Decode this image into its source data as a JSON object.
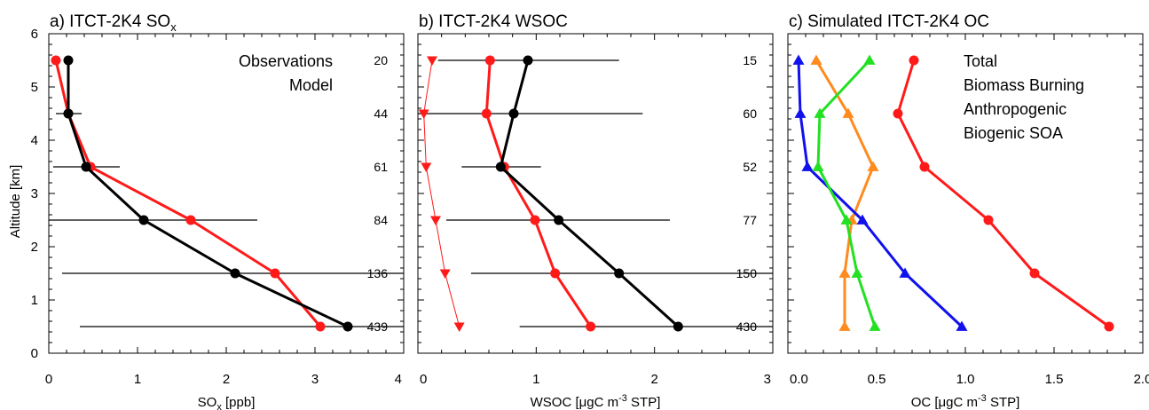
{
  "figure": {
    "ylabel": "Altitude [km]"
  },
  "chart_data": [
    {
      "type": "line",
      "title": "a) ITCT-2K4 SO",
      "title_sub": "x",
      "xlabel": "SO",
      "xlabel_sub": "x",
      "xlabel_rest": " [ppb]",
      "ylabel": "Altitude [km]",
      "xlim": [
        0,
        4
      ],
      "ylim": [
        0,
        6
      ],
      "xticks": [
        "0",
        "1",
        "2",
        "3",
        "4"
      ],
      "yticks": [
        "0",
        "1",
        "2",
        "3",
        "4",
        "5",
        "6"
      ],
      "legend": [
        {
          "label": "Observations",
          "color": "#000000"
        },
        {
          "label": "Model",
          "color": "#ff1a1a"
        }
      ],
      "counts": [
        {
          "y": 5.5,
          "label": "20"
        },
        {
          "y": 4.5,
          "label": "44"
        },
        {
          "y": 3.5,
          "label": "61"
        },
        {
          "y": 2.5,
          "label": "84"
        },
        {
          "y": 1.5,
          "label": "136"
        },
        {
          "y": 0.5,
          "label": "439"
        }
      ],
      "errorbars": [
        {
          "y": 5.5,
          "low": 0.2,
          "high": 0.22
        },
        {
          "y": 4.5,
          "low": 0.08,
          "high": 0.37
        },
        {
          "y": 3.5,
          "low": 0.05,
          "high": 0.8
        },
        {
          "y": 2.5,
          "low": 0.0,
          "high": 2.35
        },
        {
          "y": 1.5,
          "low": 0.15,
          "high": 4.0
        },
        {
          "y": 0.5,
          "low": 0.35,
          "high": 4.0
        }
      ],
      "series": [
        {
          "name": "Model",
          "color": "#ff1a1a",
          "marker": "circle",
          "width": 3,
          "x": [
            0.08,
            0.22,
            0.47,
            1.6,
            2.55,
            3.06
          ],
          "y": [
            5.5,
            4.5,
            3.5,
            2.5,
            1.5,
            0.5
          ]
        },
        {
          "name": "Observations",
          "color": "#000000",
          "marker": "circle",
          "width": 3,
          "x": [
            0.22,
            0.22,
            0.42,
            1.07,
            2.1,
            3.37
          ],
          "y": [
            5.5,
            4.5,
            3.5,
            2.5,
            1.5,
            0.5
          ]
        }
      ]
    },
    {
      "type": "line",
      "title": "b) ITCT-2K4 WSOC",
      "xlabel": "WSOC [μgC m",
      "xlabel_sup": "-3",
      "xlabel_rest": " STP]",
      "xlim": [
        0,
        3
      ],
      "ylim": [
        0,
        6
      ],
      "xticks": [
        "0",
        "1",
        "2",
        "3"
      ],
      "yticks": [],
      "counts": [
        {
          "y": 5.5,
          "label": "15"
        },
        {
          "y": 4.5,
          "label": "60"
        },
        {
          "y": 3.5,
          "label": "52"
        },
        {
          "y": 2.5,
          "label": "77"
        },
        {
          "y": 1.5,
          "label": "150"
        },
        {
          "y": 0.5,
          "label": "430"
        }
      ],
      "errorbars": [
        {
          "y": 5.5,
          "low": 0.17,
          "high": 1.7
        },
        {
          "y": 4.5,
          "low": 0.0,
          "high": 1.9
        },
        {
          "y": 3.5,
          "low": 0.37,
          "high": 1.04
        },
        {
          "y": 2.5,
          "low": 0.24,
          "high": 2.13
        },
        {
          "y": 1.5,
          "low": 0.45,
          "high": 3.0
        },
        {
          "y": 0.5,
          "low": 0.86,
          "high": 3.0
        }
      ],
      "series": [
        {
          "name": "",
          "color": "#ff1a1a",
          "marker": "triangle-down",
          "width": 1,
          "x": [
            0.12,
            0.05,
            0.07,
            0.15,
            0.23,
            0.35
          ],
          "y": [
            5.5,
            4.5,
            3.5,
            2.5,
            1.5,
            0.5
          ]
        },
        {
          "name": "Model",
          "color": "#ff1a1a",
          "marker": "circle",
          "width": 3,
          "x": [
            0.61,
            0.58,
            0.73,
            0.99,
            1.16,
            1.46
          ],
          "y": [
            5.5,
            4.5,
            3.5,
            2.5,
            1.5,
            0.5
          ]
        },
        {
          "name": "Observations",
          "color": "#000000",
          "marker": "circle",
          "width": 3,
          "x": [
            0.93,
            0.81,
            0.7,
            1.19,
            1.7,
            2.2
          ],
          "y": [
            5.5,
            4.5,
            3.5,
            2.5,
            1.5,
            0.5
          ]
        }
      ]
    },
    {
      "type": "line",
      "title": "c) Simulated ITCT-2K4 OC",
      "xlabel": "OC [μgC m",
      "xlabel_sup": "-3",
      "xlabel_rest": " STP]",
      "xlim": [
        0,
        2
      ],
      "ylim": [
        0,
        6
      ],
      "xticks": [
        "0.0",
        "0.5",
        "1.0",
        "1.5",
        "2.0"
      ],
      "yticks": [],
      "legend": [
        {
          "label": "Total",
          "color": "#ff1a1a"
        },
        {
          "label": "Biomass Burning",
          "color": "#ff8a1e"
        },
        {
          "label": "Anthropogenic",
          "color": "#1111ee"
        },
        {
          "label": "Biogenic SOA",
          "color": "#22e022"
        }
      ],
      "series": [
        {
          "name": "Total",
          "color": "#ff1a1a",
          "marker": "circle",
          "width": 3,
          "x": [
            0.71,
            0.62,
            0.77,
            1.13,
            1.39,
            1.81
          ],
          "y": [
            5.5,
            4.5,
            3.5,
            2.5,
            1.5,
            0.5
          ]
        },
        {
          "name": "Biomass Burning",
          "color": "#ff8a1e",
          "marker": "triangle-up",
          "width": 3,
          "x": [
            0.16,
            0.34,
            0.48,
            0.36,
            0.32,
            0.32
          ],
          "y": [
            5.5,
            4.5,
            3.5,
            2.5,
            1.5,
            0.5
          ]
        },
        {
          "name": "Anthropogenic",
          "color": "#1111ee",
          "marker": "triangle-up",
          "width": 3,
          "x": [
            0.06,
            0.07,
            0.11,
            0.42,
            0.66,
            0.98
          ],
          "y": [
            5.5,
            4.5,
            3.5,
            2.5,
            1.5,
            0.5
          ]
        },
        {
          "name": "Biogenic SOA",
          "color": "#22e022",
          "marker": "triangle-up",
          "width": 3,
          "x": [
            0.46,
            0.18,
            0.17,
            0.33,
            0.39,
            0.49
          ],
          "y": [
            5.5,
            4.5,
            3.5,
            2.5,
            1.5,
            0.5
          ]
        }
      ]
    }
  ]
}
